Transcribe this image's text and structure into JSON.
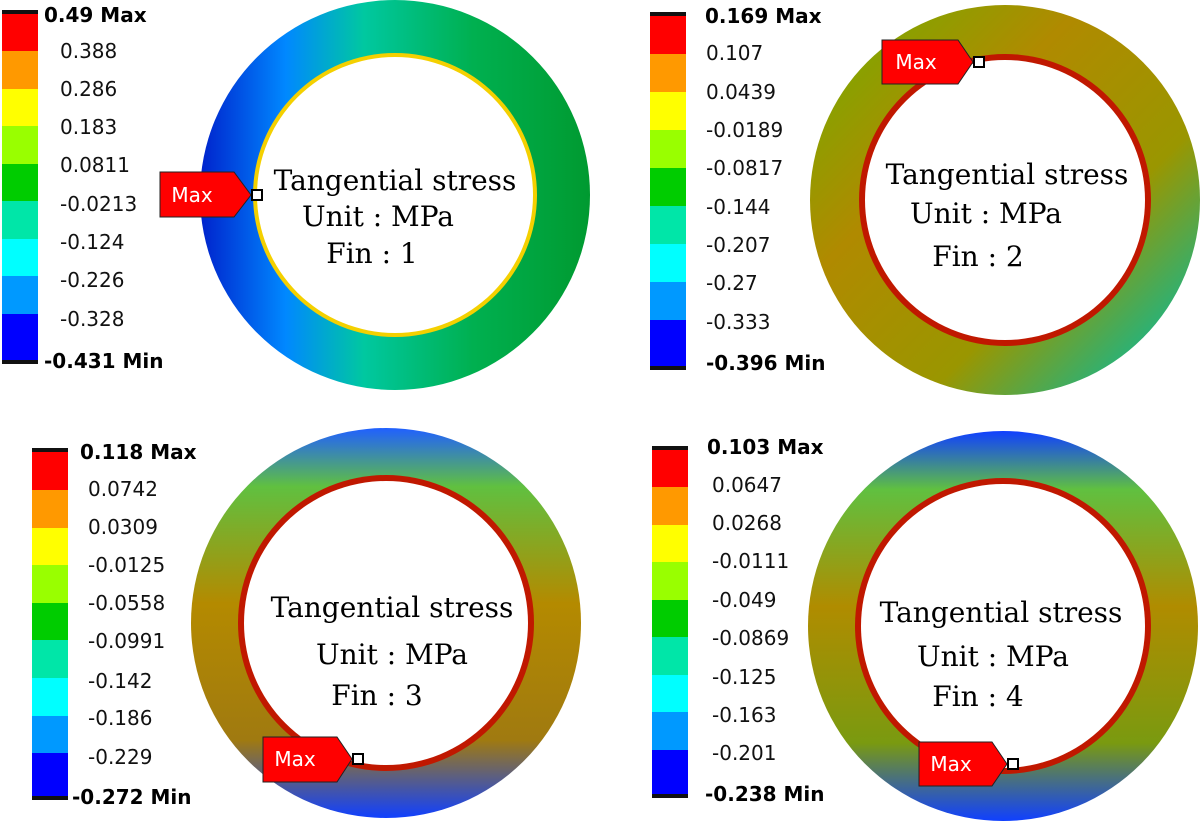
{
  "legend_colors": [
    "#ff0000",
    "#ff9900",
    "#ffff00",
    "#99ff00",
    "#00cc00",
    "#00e6a8",
    "#00ffff",
    "#0099ff",
    "#0000ff"
  ],
  "panels": [
    {
      "caption": [
        "Tangential stress",
        "Unit : MPa",
        "Fin : 1"
      ],
      "legend": [
        "0.49 Max",
        "0.388",
        "0.286",
        "0.183",
        "0.0811",
        "-0.0213",
        "-0.124",
        "-0.226",
        "-0.328",
        "-0.431 Min"
      ],
      "marker_label": "Max",
      "gradient": "fin1"
    },
    {
      "caption": [
        "Tangential stress",
        "Unit : MPa",
        "Fin : 2"
      ],
      "legend": [
        "0.169 Max",
        "0.107",
        "0.0439",
        "-0.0189",
        "-0.0817",
        "-0.144",
        "-0.207",
        "-0.27",
        "-0.333",
        "-0.396 Min"
      ],
      "marker_label": "Max",
      "gradient": "fin2"
    },
    {
      "caption": [
        "Tangential stress",
        "Unit : MPa",
        "Fin : 3"
      ],
      "legend": [
        "0.118 Max",
        "0.0742",
        "0.0309",
        "-0.0125",
        "-0.0558",
        "-0.0991",
        "-0.142",
        "-0.186",
        "-0.229",
        "-0.272 Min"
      ],
      "marker_label": "Max",
      "gradient": "fin3"
    },
    {
      "caption": [
        "Tangential stress",
        "Unit : MPa",
        "Fin : 4"
      ],
      "legend": [
        "0.103 Max",
        "0.0647",
        "0.0268",
        "-0.0111",
        "-0.049",
        "-0.0869",
        "-0.125",
        "-0.163",
        "-0.201",
        "-0.238 Min"
      ],
      "marker_label": "Max",
      "gradient": "fin4"
    }
  ]
}
